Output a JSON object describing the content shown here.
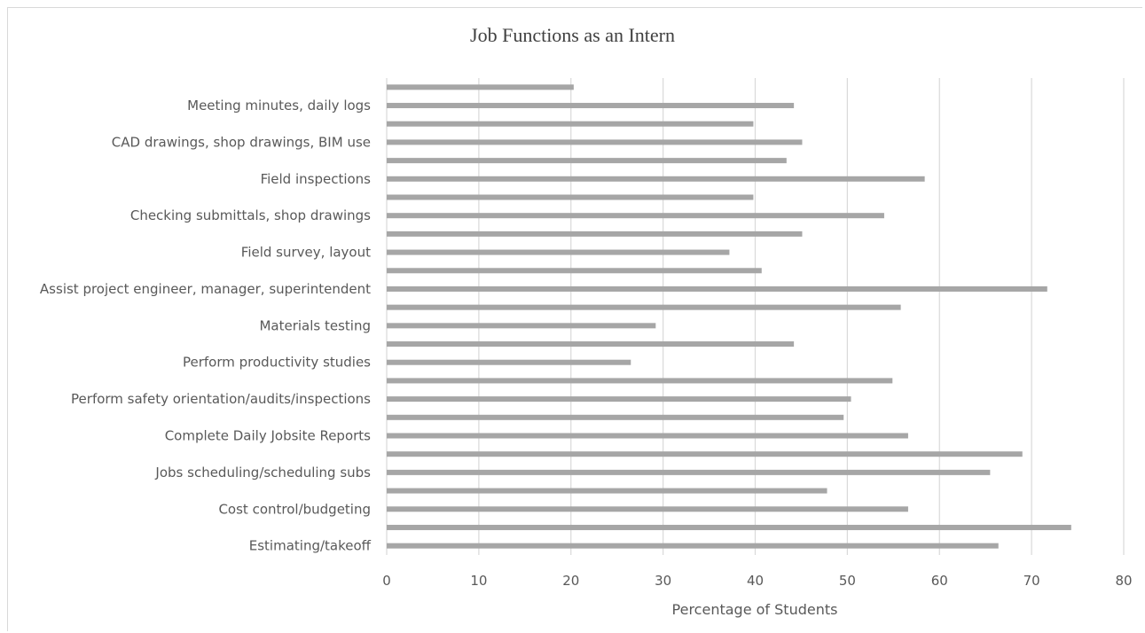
{
  "chart_data": {
    "type": "bar",
    "orientation": "horizontal",
    "title": "Job Functions as an Intern",
    "xlabel": "Percentage of Students",
    "ylabel": "",
    "xlim": [
      0,
      80
    ],
    "xticks": [
      0,
      10,
      20,
      30,
      40,
      50,
      60,
      70,
      80
    ],
    "grid": true,
    "bar_color": "#a6a6a6",
    "grid_color": "#d9d9d9",
    "bars_top_to_bottom": [
      {
        "label": "",
        "value": 20.3
      },
      {
        "label": "Meeting minutes, daily logs",
        "value": 44.2
      },
      {
        "label": "",
        "value": 39.8
      },
      {
        "label": "CAD drawings, shop drawings, BIM use",
        "value": 45.1
      },
      {
        "label": "",
        "value": 43.4
      },
      {
        "label": "Field inspections",
        "value": 58.4
      },
      {
        "label": "",
        "value": 39.8
      },
      {
        "label": "Checking submittals, shop drawings",
        "value": 54.0
      },
      {
        "label": "",
        "value": 45.1
      },
      {
        "label": "Field survey, layout",
        "value": 37.2
      },
      {
        "label": "",
        "value": 40.7
      },
      {
        "label": "Assist project engineer, manager, superintendent",
        "value": 71.7
      },
      {
        "label": "",
        "value": 55.8
      },
      {
        "label": "Materials testing",
        "value": 29.2
      },
      {
        "label": "",
        "value": 44.2
      },
      {
        "label": "Perform productivity studies",
        "value": 26.5
      },
      {
        "label": "",
        "value": 54.9
      },
      {
        "label": "Perform safety orientation/audits/inspections",
        "value": 50.4
      },
      {
        "label": "",
        "value": 49.6
      },
      {
        "label": "Complete Daily Jobsite Reports",
        "value": 56.6
      },
      {
        "label": "",
        "value": 69.0
      },
      {
        "label": "Jobs scheduling/scheduling subs",
        "value": 65.5
      },
      {
        "label": "",
        "value": 47.8
      },
      {
        "label": "Cost control/budgeting",
        "value": 56.6
      },
      {
        "label": "",
        "value": 74.3
      },
      {
        "label": "Estimating/takeoff",
        "value": 66.4
      }
    ]
  }
}
